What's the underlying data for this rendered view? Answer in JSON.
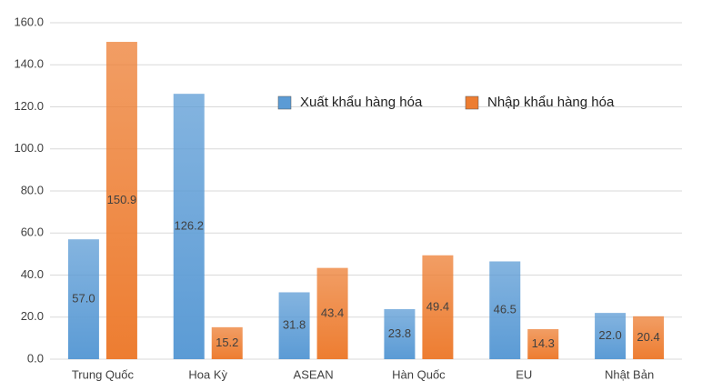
{
  "chart_data": {
    "type": "bar",
    "categories": [
      "Trung Quốc",
      "Hoa Kỳ",
      "ASEAN",
      "Hàn Quốc",
      "EU",
      "Nhật Bản"
    ],
    "series": [
      {
        "name": "Xuất khẩu hàng hóa",
        "color": "#5b9bd5",
        "values": [
          57.0,
          126.2,
          31.8,
          23.8,
          46.5,
          22.0
        ],
        "value_labels": [
          "57.0",
          "126.2",
          "31.8",
          "23.8",
          "46.5",
          "22.0"
        ]
      },
      {
        "name": "Nhập khẩu hàng hóa",
        "color": "#ed7d31",
        "values": [
          150.9,
          15.2,
          43.4,
          49.4,
          14.3,
          20.4
        ],
        "value_labels": [
          "150.9",
          "15.2",
          "43.4",
          "49.4",
          "14.3",
          "20.4"
        ]
      }
    ],
    "ylim": [
      0,
      160
    ],
    "yticks": [
      {
        "value": 0,
        "label": "0.0"
      },
      {
        "value": 20,
        "label": "20.0"
      },
      {
        "value": 40,
        "label": "40.0"
      },
      {
        "value": 60,
        "label": "60.0"
      },
      {
        "value": 80,
        "label": "80.0"
      },
      {
        "value": 100,
        "label": "100.0"
      },
      {
        "value": 120,
        "label": "120.0"
      },
      {
        "value": 140,
        "label": "140.0"
      },
      {
        "value": 160,
        "label": "160.0"
      }
    ],
    "grid": true
  }
}
